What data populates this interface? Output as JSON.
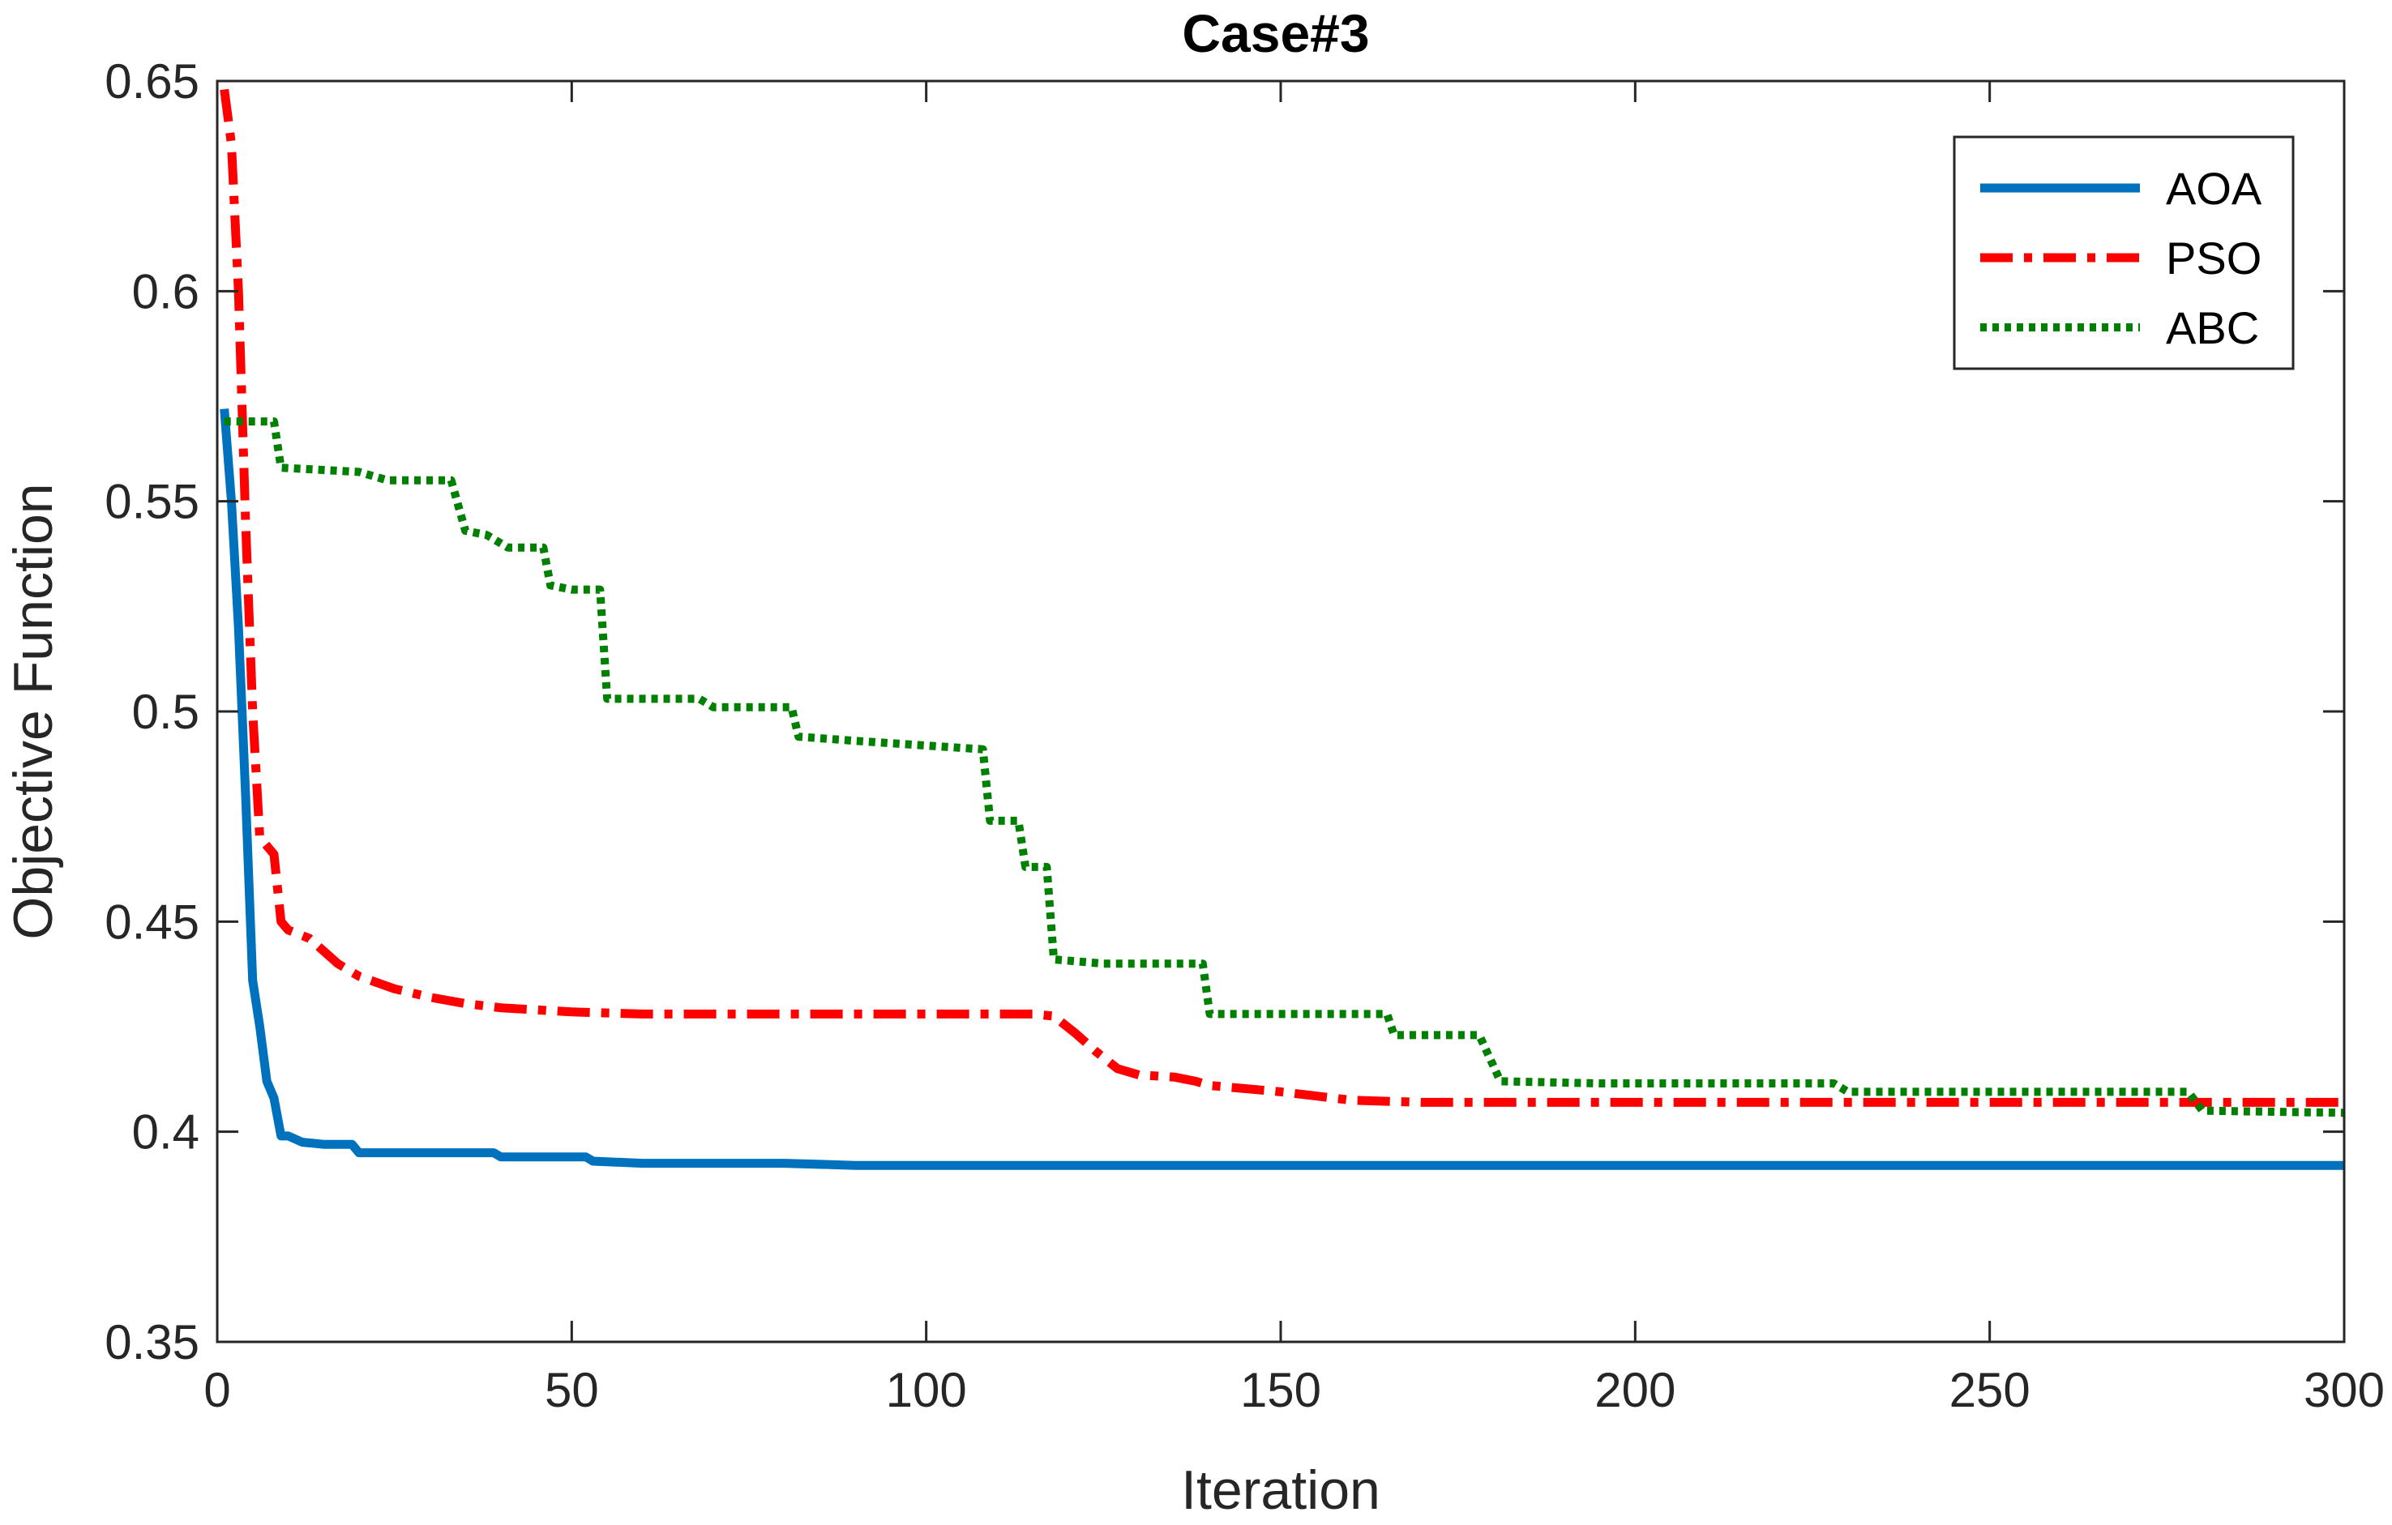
{
  "chart_data": {
    "type": "line",
    "title": "Case#3",
    "xlabel": "Iteration",
    "ylabel": "Objective Function",
    "xlim": [
      0,
      300
    ],
    "ylim": [
      0.35,
      0.65
    ],
    "xticks": [
      0,
      50,
      100,
      150,
      200,
      250,
      300
    ],
    "xtick_labels": [
      "0",
      "50",
      "100",
      "150",
      "200",
      "250",
      "300"
    ],
    "yticks": [
      0.35,
      0.4,
      0.45,
      0.5,
      0.55,
      0.6,
      0.65
    ],
    "ytick_labels": [
      "0.35",
      "0.4",
      "0.45",
      "0.5",
      "0.55",
      "0.6",
      "0.65"
    ],
    "legend_position": "top-right",
    "series": [
      {
        "name": "AOA",
        "color": "#0072BD",
        "style": "solid",
        "points": [
          [
            1,
            0.572
          ],
          [
            2,
            0.55
          ],
          [
            3,
            0.52
          ],
          [
            4,
            0.48
          ],
          [
            5,
            0.436
          ],
          [
            6,
            0.425
          ],
          [
            7,
            0.412
          ],
          [
            8,
            0.408
          ],
          [
            9,
            0.399
          ],
          [
            10,
            0.399
          ],
          [
            12,
            0.3975
          ],
          [
            15,
            0.397
          ],
          [
            19,
            0.397
          ],
          [
            20,
            0.395
          ],
          [
            25,
            0.395
          ],
          [
            39,
            0.395
          ],
          [
            40,
            0.394
          ],
          [
            52,
            0.394
          ],
          [
            53,
            0.393
          ],
          [
            60,
            0.3925
          ],
          [
            80,
            0.3925
          ],
          [
            90,
            0.392
          ],
          [
            150,
            0.392
          ],
          [
            300,
            0.392
          ]
        ]
      },
      {
        "name": "PSO",
        "color": "#FF0000",
        "style": "dashdot",
        "points": [
          [
            1,
            0.648
          ],
          [
            2,
            0.635
          ],
          [
            3,
            0.6
          ],
          [
            4,
            0.545
          ],
          [
            5,
            0.5
          ],
          [
            6,
            0.47
          ],
          [
            8,
            0.466
          ],
          [
            9,
            0.45
          ],
          [
            10,
            0.448
          ],
          [
            13,
            0.446
          ],
          [
            15,
            0.443
          ],
          [
            17,
            0.44
          ],
          [
            20,
            0.437
          ],
          [
            25,
            0.434
          ],
          [
            30,
            0.432
          ],
          [
            35,
            0.4305
          ],
          [
            40,
            0.4295
          ],
          [
            50,
            0.4285
          ],
          [
            60,
            0.428
          ],
          [
            115,
            0.428
          ],
          [
            118,
            0.4275
          ],
          [
            121,
            0.4235
          ],
          [
            124,
            0.419
          ],
          [
            127,
            0.415
          ],
          [
            130,
            0.4135
          ],
          [
            135,
            0.413
          ],
          [
            138,
            0.412
          ],
          [
            140,
            0.411
          ],
          [
            150,
            0.4095
          ],
          [
            155,
            0.4085
          ],
          [
            160,
            0.4075
          ],
          [
            170,
            0.407
          ],
          [
            300,
            0.407
          ]
        ]
      },
      {
        "name": "ABC",
        "color": "#008000",
        "style": "dotted",
        "points": [
          [
            1,
            0.569
          ],
          [
            8,
            0.569
          ],
          [
            9,
            0.558
          ],
          [
            20,
            0.557
          ],
          [
            24,
            0.555
          ],
          [
            33,
            0.555
          ],
          [
            35,
            0.543
          ],
          [
            38,
            0.542
          ],
          [
            41,
            0.539
          ],
          [
            46,
            0.539
          ],
          [
            47,
            0.53
          ],
          [
            50,
            0.529
          ],
          [
            54,
            0.529
          ],
          [
            55,
            0.503
          ],
          [
            68,
            0.503
          ],
          [
            70,
            0.501
          ],
          [
            81,
            0.501
          ],
          [
            82,
            0.494
          ],
          [
            90,
            0.493
          ],
          [
            108,
            0.491
          ],
          [
            109,
            0.474
          ],
          [
            113,
            0.474
          ],
          [
            114,
            0.463
          ],
          [
            117,
            0.463
          ],
          [
            118,
            0.441
          ],
          [
            125,
            0.44
          ],
          [
            139,
            0.44
          ],
          [
            140,
            0.428
          ],
          [
            165,
            0.428
          ],
          [
            166,
            0.423
          ],
          [
            178,
            0.423
          ],
          [
            181,
            0.412
          ],
          [
            195,
            0.4115
          ],
          [
            228,
            0.4115
          ],
          [
            230,
            0.4095
          ],
          [
            278,
            0.4095
          ],
          [
            280,
            0.405
          ],
          [
            300,
            0.4045
          ]
        ]
      }
    ]
  }
}
